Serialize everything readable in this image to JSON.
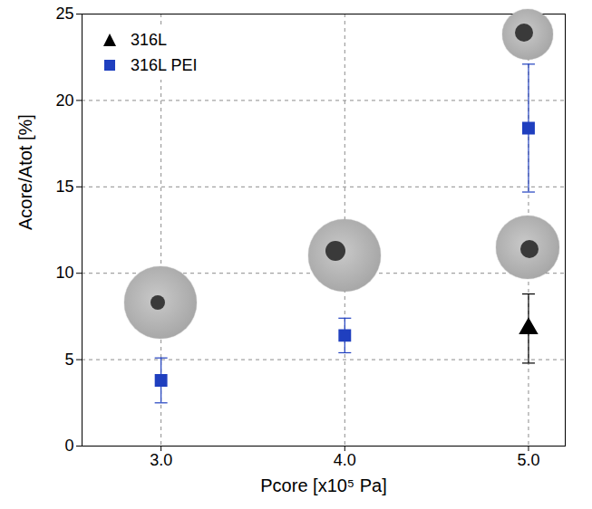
{
  "chart_data": {
    "type": "scatter",
    "xlabel": "Pcore [x10⁵ Pa]",
    "ylabel": "Acore/Atot [%]",
    "xlim": [
      2.57,
      5.2
    ],
    "xticks": [
      3,
      4,
      5
    ],
    "ylim": [
      0,
      25
    ],
    "yticks": [
      0,
      5,
      10,
      15,
      20,
      25
    ],
    "grid": true,
    "legend": "top-left",
    "series": [
      {
        "name": "316L",
        "color": "#000000",
        "marker": "triangle",
        "x": [
          5
        ],
        "values": [
          6.8
        ],
        "errors": [
          2.0
        ]
      },
      {
        "name": "316L PEI",
        "color": "#1f3fbf",
        "marker": "square",
        "x": [
          3,
          4,
          5
        ],
        "values": [
          3.8,
          6.4,
          18.4
        ],
        "errors": [
          1.3,
          1.0,
          3.7
        ]
      }
    ]
  }
}
